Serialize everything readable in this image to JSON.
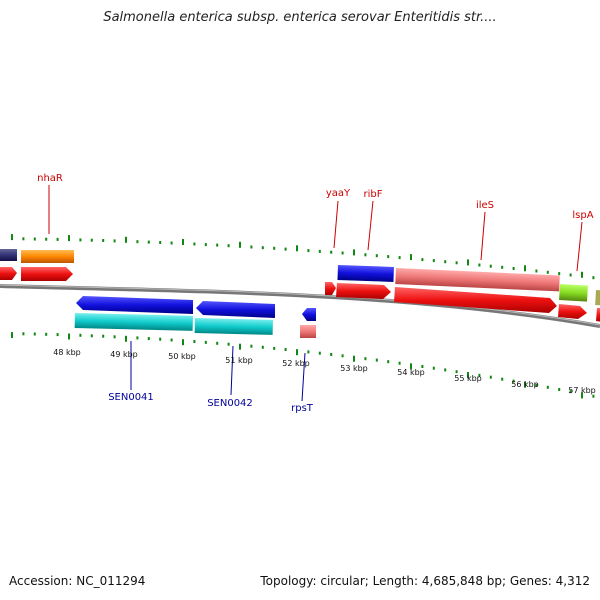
{
  "title": "Salmonella enterica subsp. enterica serovar Enteritidis str....",
  "footer": {
    "accession": "Accession: NC_011294",
    "summary": "Topology: circular; Length: 4,685,848 bp; Genes: 4,312"
  },
  "ticks": [
    "48 kbp",
    "49 kbp",
    "50 kbp",
    "51 kbp",
    "52 kbp",
    "53 kbp",
    "54 kbp",
    "55 kbp",
    "56 kbp",
    "57 kbp"
  ],
  "labels_top": [
    "nhaR",
    "yaaY",
    "ribF",
    "ileS",
    "lspA"
  ],
  "labels_bottom": [
    "SEN0041",
    "SEN0042",
    "rpsT"
  ],
  "colors": {
    "cds_red": "#ee1111",
    "gene_orange": "#ff8800",
    "gene_blue": "#1111dd",
    "gene_pink": "#ee7777",
    "gene_cyan": "#11cccc",
    "gene_green": "#88dd22",
    "gene_navy": "#333377",
    "backbone": "#777777",
    "tick_green": "#118811",
    "label_red": "#cc0000",
    "label_blue": "#000099"
  }
}
